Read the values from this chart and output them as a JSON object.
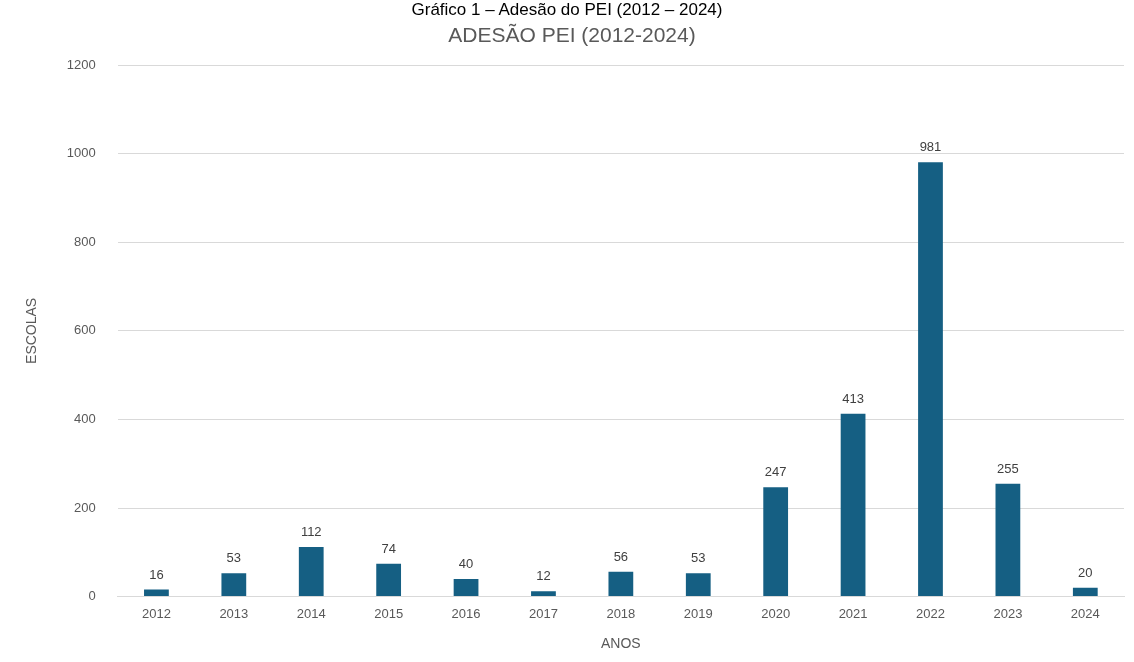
{
  "chart_data": {
    "type": "bar",
    "title": "ADESÃO PEI (2012-2024)",
    "xlabel": "ANOS",
    "ylabel": "ESCOLAS",
    "annotations": [
      "Gráfico 1 – Adesão do PEI (2012 – 2024)"
    ],
    "categories": [
      "2012",
      "2013",
      "2014",
      "2015",
      "2016",
      "2017",
      "2018",
      "2019",
      "2020",
      "2021",
      "2022",
      "2023",
      "2024"
    ],
    "values": [
      16,
      53,
      112,
      74,
      40,
      12,
      56,
      53,
      247,
      413,
      981,
      255,
      20
    ],
    "color": "#155f83",
    "ylim": [
      0,
      1200
    ],
    "yticks": [
      0,
      200,
      400,
      600,
      800,
      1000,
      1200
    ],
    "grid": "y",
    "legend": false,
    "data_labels": true
  }
}
